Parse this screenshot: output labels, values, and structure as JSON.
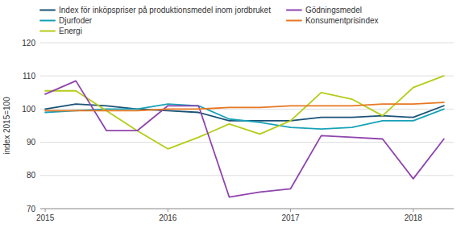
{
  "chart_data": {
    "type": "line",
    "y_label": "index 2015=100",
    "x": [
      2015.0,
      2015.25,
      2015.5,
      2015.75,
      2016.0,
      2016.25,
      2016.5,
      2016.75,
      2017.0,
      2017.25,
      2017.5,
      2017.75,
      2018.0,
      2018.25
    ],
    "xlim": [
      2014.96,
      2018.33
    ],
    "xticks": [
      2015,
      2016,
      2017,
      2018
    ],
    "ylim": [
      70,
      120
    ],
    "yticks": [
      70,
      80,
      90,
      100,
      110,
      120
    ],
    "grid": true,
    "legend": "upper left",
    "series": [
      {
        "name": "Index för inköpspriser på produktionsmedel inom jordbruket",
        "color": "#1a5276",
        "values": [
          100.0,
          101.5,
          101.0,
          100.0,
          99.5,
          99.0,
          96.5,
          96.5,
          96.5,
          97.5,
          97.5,
          98.0,
          97.5,
          101.0
        ]
      },
      {
        "name": "Djurfoder",
        "color": "#17a2b8",
        "values": [
          99.0,
          99.5,
          100.0,
          100.0,
          101.5,
          101.0,
          97.0,
          96.0,
          94.5,
          94.0,
          94.5,
          96.5,
          96.5,
          100.0
        ]
      },
      {
        "name": "Energi",
        "color": "#b5cc18",
        "values": [
          105.5,
          105.5,
          99.5,
          93.5,
          88.0,
          91.5,
          95.5,
          92.5,
          96.5,
          105.0,
          103.0,
          98.0,
          106.5,
          110.0
        ]
      },
      {
        "name": "Gödningsmedel",
        "color": "#8e44ad",
        "values": [
          104.5,
          108.5,
          93.5,
          93.5,
          101.0,
          101.0,
          73.5,
          75.0,
          76.0,
          92.0,
          91.5,
          91.0,
          79.0,
          91.0
        ]
      },
      {
        "name": "Konsumentprisindex",
        "color": "#e87722",
        "values": [
          99.5,
          99.5,
          99.5,
          99.5,
          100.0,
          100.0,
          100.5,
          100.5,
          101.0,
          101.0,
          101.0,
          101.5,
          101.5,
          102.0
        ]
      }
    ]
  }
}
